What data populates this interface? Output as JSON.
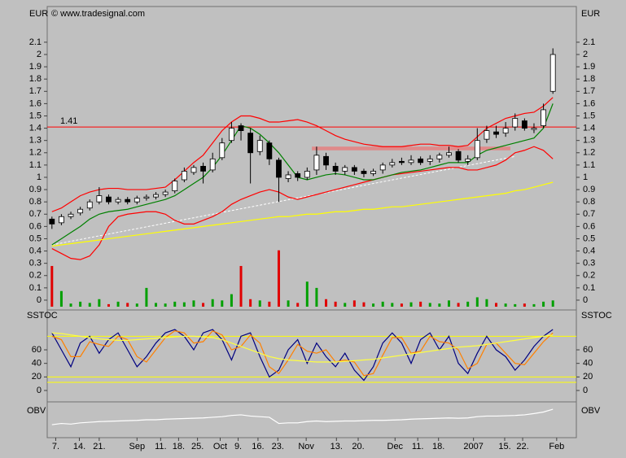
{
  "header": {
    "copyright": "© www.tradesignal.com"
  },
  "chart_data": [
    {
      "type": "candlestick",
      "y_label": "EUR",
      "xlim": [
        -0.5,
        53.5
      ],
      "xticks": [
        {
          "value": 0.4,
          "label": "7."
        },
        {
          "value": 2.9,
          "label": "14."
        },
        {
          "value": 5,
          "label": "21."
        },
        {
          "value": 9,
          "label": "Sep"
        },
        {
          "value": 11.5,
          "label": "11."
        },
        {
          "value": 13.4,
          "label": "18."
        },
        {
          "value": 15.4,
          "label": "25."
        },
        {
          "value": 17.8,
          "label": "Oct"
        },
        {
          "value": 19.7,
          "label": "9."
        },
        {
          "value": 21.8,
          "label": "16."
        },
        {
          "value": 23.9,
          "label": "23."
        },
        {
          "value": 26.9,
          "label": "Nov"
        },
        {
          "value": 30.1,
          "label": "13."
        },
        {
          "value": 32.4,
          "label": "20."
        },
        {
          "value": 36.3,
          "label": "Dec"
        },
        {
          "value": 38.7,
          "label": "11."
        },
        {
          "value": 40.9,
          "label": "18."
        },
        {
          "value": 44.6,
          "label": "2007"
        },
        {
          "value": 47.9,
          "label": "15."
        },
        {
          "value": 49.8,
          "label": "22."
        },
        {
          "value": 53.4,
          "label": "Feb"
        }
      ],
      "ylim": [
        -0.05,
        2.2
      ],
      "yticks": [
        0,
        0.1,
        0.2,
        0.3,
        0.4,
        0.5,
        0.6,
        0.7,
        0.8,
        0.9,
        1,
        1.1,
        1.2,
        1.3,
        1.4,
        1.5,
        1.6,
        1.7,
        1.8,
        1.9,
        2,
        2.1
      ],
      "up_color": "#ffffff",
      "down_color": "#000000",
      "open": [
        0.66,
        0.63,
        0.68,
        0.71,
        0.75,
        0.8,
        0.84,
        0.8,
        0.82,
        0.8,
        0.83,
        0.84,
        0.86,
        0.89,
        0.98,
        1.04,
        1.09,
        1.06,
        1.16,
        1.3,
        1.42,
        1.36,
        1.21,
        1.28,
        1.14,
        0.99,
        1.03,
        1.0,
        1.06,
        1.17,
        1.09,
        1.05,
        1.08,
        1.05,
        1.03,
        1.06,
        1.1,
        1.13,
        1.12,
        1.15,
        1.13,
        1.15,
        1.18,
        1.21,
        1.13,
        1.16,
        1.31,
        1.37,
        1.36,
        1.41,
        1.46,
        1.39,
        1.42,
        1.7
      ],
      "high": [
        0.68,
        0.7,
        0.72,
        0.76,
        0.82,
        0.92,
        0.86,
        0.84,
        0.84,
        0.85,
        0.86,
        0.88,
        0.9,
        0.99,
        1.08,
        1.1,
        1.12,
        1.2,
        1.32,
        1.45,
        1.44,
        1.4,
        1.34,
        1.3,
        1.16,
        1.05,
        1.05,
        1.08,
        1.25,
        1.2,
        1.12,
        1.1,
        1.1,
        1.07,
        1.07,
        1.12,
        1.15,
        1.16,
        1.18,
        1.17,
        1.18,
        1.2,
        1.25,
        1.23,
        1.18,
        1.4,
        1.42,
        1.42,
        1.45,
        1.52,
        1.48,
        1.44,
        1.6,
        2.05
      ],
      "low": [
        0.58,
        0.61,
        0.66,
        0.69,
        0.73,
        0.78,
        0.78,
        0.78,
        0.78,
        0.78,
        0.81,
        0.82,
        0.84,
        0.87,
        0.96,
        1.02,
        0.95,
        1.04,
        1.14,
        1.28,
        1.3,
        0.95,
        1.18,
        1.1,
        0.8,
        0.96,
        0.97,
        0.98,
        1.02,
        1.06,
        1.02,
        1.02,
        1.02,
        1.0,
        1.01,
        1.03,
        1.08,
        1.1,
        1.1,
        1.1,
        1.1,
        1.12,
        1.16,
        1.12,
        1.1,
        1.14,
        1.28,
        1.32,
        1.33,
        1.38,
        1.38,
        1.36,
        1.4,
        1.68
      ],
      "close": [
        0.62,
        0.68,
        0.7,
        0.74,
        0.8,
        0.85,
        0.8,
        0.82,
        0.8,
        0.83,
        0.84,
        0.86,
        0.88,
        0.97,
        1.05,
        1.08,
        1.05,
        1.15,
        1.28,
        1.4,
        1.38,
        1.2,
        1.3,
        1.15,
        1.0,
        1.02,
        1.0,
        1.05,
        1.18,
        1.1,
        1.05,
        1.08,
        1.05,
        1.03,
        1.05,
        1.1,
        1.12,
        1.12,
        1.14,
        1.12,
        1.15,
        1.18,
        1.2,
        1.14,
        1.15,
        1.3,
        1.38,
        1.35,
        1.4,
        1.48,
        1.4,
        1.4,
        1.55,
        2.0
      ],
      "series": [
        {
          "color": "#ff0000",
          "values": [
            0.72,
            0.75,
            0.8,
            0.85,
            0.88,
            0.9,
            0.91,
            0.91,
            0.9,
            0.9,
            0.9,
            0.91,
            0.92,
            0.98,
            1.05,
            1.12,
            1.18,
            1.28,
            1.38,
            1.45,
            1.5,
            1.5,
            1.48,
            1.45,
            1.45,
            1.46,
            1.47,
            1.45,
            1.42,
            1.38,
            1.34,
            1.31,
            1.29,
            1.27,
            1.26,
            1.25,
            1.25,
            1.25,
            1.26,
            1.27,
            1.27,
            1.26,
            1.26,
            1.25,
            1.26,
            1.33,
            1.4,
            1.44,
            1.48,
            1.5,
            1.52,
            1.53,
            1.58,
            1.65
          ]
        },
        {
          "color": "#ff0000",
          "values": [
            0.42,
            0.38,
            0.34,
            0.33,
            0.36,
            0.45,
            0.6,
            0.68,
            0.7,
            0.71,
            0.72,
            0.72,
            0.7,
            0.65,
            0.62,
            0.62,
            0.65,
            0.68,
            0.72,
            0.78,
            0.82,
            0.85,
            0.88,
            0.9,
            0.88,
            0.84,
            0.82,
            0.84,
            0.86,
            0.88,
            0.9,
            0.92,
            0.94,
            0.96,
            0.98,
            1.0,
            1.02,
            1.03,
            1.04,
            1.05,
            1.06,
            1.07,
            1.08,
            1.08,
            1.06,
            1.06,
            1.08,
            1.1,
            1.14,
            1.2,
            1.22,
            1.25,
            1.22,
            1.15
          ]
        },
        {
          "color": "#008000",
          "values": [
            0.45,
            0.5,
            0.55,
            0.6,
            0.66,
            0.7,
            0.72,
            0.73,
            0.74,
            0.76,
            0.78,
            0.8,
            0.82,
            0.85,
            0.9,
            0.95,
            1.0,
            1.08,
            1.18,
            1.3,
            1.42,
            1.4,
            1.35,
            1.28,
            1.2,
            1.1,
            1.0,
            0.98,
            1.0,
            1.02,
            1.03,
            1.02,
            1.0,
            0.98,
            0.98,
            1.0,
            1.02,
            1.04,
            1.05,
            1.06,
            1.08,
            1.1,
            1.12,
            1.12,
            1.12,
            1.18,
            1.22,
            1.24,
            1.26,
            1.28,
            1.3,
            1.32,
            1.4,
            1.6
          ]
        },
        {
          "color": "#ffff00",
          "values": [
            0.44,
            0.45,
            0.46,
            0.47,
            0.48,
            0.49,
            0.5,
            0.51,
            0.52,
            0.53,
            0.54,
            0.55,
            0.56,
            0.57,
            0.58,
            0.59,
            0.6,
            0.61,
            0.62,
            0.63,
            0.64,
            0.65,
            0.66,
            0.67,
            0.68,
            0.68,
            0.69,
            0.7,
            0.7,
            0.71,
            0.72,
            0.72,
            0.73,
            0.74,
            0.74,
            0.75,
            0.76,
            0.76,
            0.77,
            0.78,
            0.79,
            0.8,
            0.81,
            0.82,
            0.83,
            0.84,
            0.85,
            0.86,
            0.87,
            0.89,
            0.9,
            0.92,
            0.94,
            0.96
          ]
        }
      ],
      "hline": {
        "value": 1.41,
        "color": "#ff0000"
      },
      "zone": {
        "x": [
          27.5,
          48.5
        ],
        "y": [
          1.22,
          1.25
        ],
        "color": "#e08a8a"
      },
      "trend": {
        "x": [
          0,
          49
        ],
        "y": [
          0.45,
          1.17
        ],
        "color": "#ffffff"
      }
    },
    {
      "type": "bar",
      "ylim": [
        0,
        100
      ],
      "up_color": "#00a000",
      "down_color": "#e00000",
      "values": [
        65,
        25,
        5,
        8,
        6,
        12,
        4,
        8,
        6,
        5,
        30,
        6,
        5,
        8,
        7,
        10,
        6,
        12,
        10,
        20,
        65,
        12,
        10,
        8,
        90,
        10,
        6,
        40,
        30,
        12,
        8,
        6,
        10,
        7,
        5,
        8,
        6,
        5,
        7,
        8,
        6,
        5,
        10,
        6,
        8,
        15,
        12,
        6,
        5,
        4,
        5,
        4,
        8,
        10
      ]
    },
    {
      "type": "line",
      "y_label": "SSTOC",
      "ylim": [
        0,
        100
      ],
      "yticks": [
        0,
        20,
        40,
        60
      ],
      "levels": [
        80,
        20,
        12
      ],
      "level_color": "#ffff00",
      "series": [
        {
          "color": "#000080",
          "values": [
            85,
            60,
            35,
            70,
            80,
            55,
            75,
            85,
            60,
            35,
            50,
            70,
            85,
            90,
            80,
            60,
            85,
            90,
            75,
            45,
            80,
            85,
            50,
            20,
            30,
            60,
            75,
            40,
            70,
            50,
            35,
            55,
            30,
            15,
            35,
            70,
            85,
            70,
            40,
            75,
            85,
            60,
            80,
            40,
            25,
            55,
            80,
            60,
            50,
            30,
            45,
            65,
            80,
            90
          ]
        },
        {
          "color": "#ff8000",
          "values": [
            80,
            75,
            50,
            50,
            72,
            68,
            65,
            80,
            75,
            50,
            42,
            60,
            78,
            88,
            85,
            70,
            72,
            88,
            82,
            60,
            65,
            82,
            70,
            35,
            25,
            45,
            68,
            58,
            55,
            60,
            42,
            45,
            42,
            22,
            25,
            52,
            78,
            78,
            55,
            58,
            80,
            72,
            70,
            60,
            32,
            40,
            68,
            70,
            55,
            40,
            38,
            55,
            72,
            85
          ]
        },
        {
          "color": "#ffff40",
          "values": [
            85,
            84,
            82,
            80,
            78,
            76,
            75,
            74,
            74,
            75,
            76,
            77,
            78,
            79,
            80,
            80,
            79,
            78,
            75,
            70,
            65,
            60,
            55,
            50,
            47,
            45,
            44,
            43,
            42,
            42,
            42,
            43,
            44,
            45,
            46,
            48,
            50,
            52,
            54,
            56,
            58,
            60,
            62,
            64,
            65,
            66,
            68,
            70,
            72,
            74,
            76,
            78,
            80,
            82
          ]
        }
      ]
    },
    {
      "type": "line",
      "y_label": "OBV",
      "ylim": [
        0,
        100
      ],
      "series": [
        {
          "color": "#ffffff",
          "values": [
            34,
            38,
            36,
            40,
            42,
            44,
            45,
            46,
            47,
            48,
            50,
            50,
            52,
            53,
            54,
            55,
            56,
            58,
            60,
            64,
            66,
            62,
            60,
            58,
            38,
            40,
            40,
            44,
            46,
            44,
            45,
            46,
            46,
            47,
            48,
            48,
            49,
            50,
            52,
            53,
            54,
            55,
            56,
            55,
            56,
            60,
            62,
            62,
            63,
            64,
            66,
            70,
            75,
            84
          ]
        }
      ]
    }
  ]
}
